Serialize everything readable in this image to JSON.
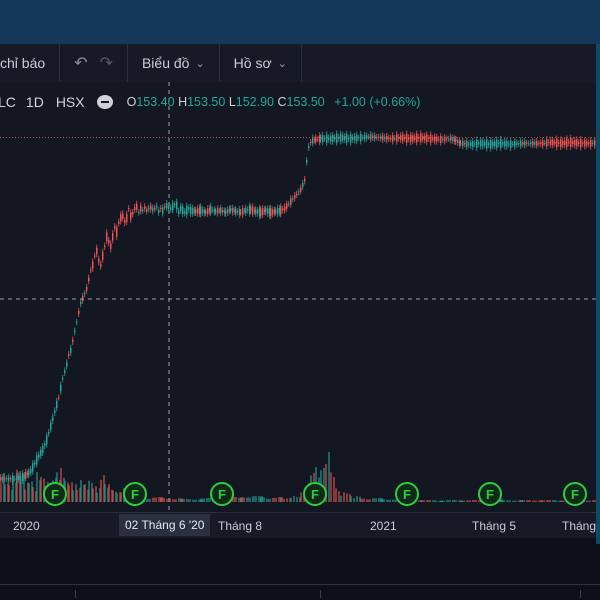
{
  "toolbar": {
    "indicators_label": "chỉ báo",
    "undo_icon": "undo-icon",
    "redo_icon": "redo-icon",
    "chart_menu_label": "Biểu đồ",
    "profile_menu_label": "Hồ sơ"
  },
  "legend": {
    "symbol": "LC",
    "timeframe": "1D",
    "exchange": "HSX",
    "open_label": "O",
    "open": "153.40",
    "high_label": "H",
    "high": "153.50",
    "low_label": "L",
    "low": "152.90",
    "close_label": "C",
    "close": "153.50",
    "change": "+1.00 (+0.66%)"
  },
  "time_axis": {
    "labels": [
      "2020",
      "Tháng 8",
      "2021",
      "Tháng 5",
      "Tháng"
    ],
    "crosshair_label": "02 Tháng 6 '20"
  },
  "events": {
    "markers": [
      "F",
      "F",
      "F",
      "F",
      "F",
      "F",
      "F"
    ]
  },
  "colors": {
    "up": "#26a69a",
    "down": "#ef5350",
    "background": "#131722",
    "event_green": "#2ecc40"
  },
  "chart_data": {
    "type": "candlestick",
    "last": {
      "open": 153.4,
      "high": 153.5,
      "low": 152.9,
      "close": 153.5
    },
    "series": [
      {
        "name": "close_path",
        "x": [
          0,
          6,
          12,
          18,
          22,
          25,
          28,
          30,
          34,
          38,
          42,
          46,
          50,
          54,
          58,
          62,
          66,
          68,
          70,
          72,
          74,
          76,
          78,
          80,
          82,
          84,
          86,
          88,
          90,
          92,
          94,
          96,
          98,
          100,
          102,
          104,
          106,
          108,
          110,
          112,
          114,
          116,
          118,
          120,
          122,
          124,
          126,
          128,
          130,
          132,
          134,
          136,
          138,
          140,
          142,
          144,
          146,
          148,
          150,
          152,
          154,
          156,
          158,
          160,
          162,
          164,
          166,
          168,
          170,
          172,
          174,
          176,
          178,
          180,
          182,
          184,
          186,
          188,
          190,
          195,
          200,
          205,
          210,
          215,
          220,
          225,
          230,
          235,
          240,
          245,
          250,
          255,
          260,
          265,
          270,
          275,
          280,
          284,
          288,
          292,
          296,
          300,
          304,
          306,
          308,
          310,
          312,
          315,
          320,
          330,
          340,
          350,
          360,
          370,
          380,
          390,
          400,
          410,
          420,
          430,
          440,
          450,
          455,
          460,
          470,
          480,
          490,
          500,
          510,
          520,
          530,
          540,
          550,
          560,
          570,
          580,
          590,
          600
        ],
        "y": [
          14,
          14,
          14,
          15,
          16,
          18,
          20,
          22,
          30,
          38,
          45,
          55,
          70,
          85,
          100,
          120,
          135,
          145,
          150,
          160,
          170,
          180,
          190,
          200,
          205,
          210,
          215,
          225,
          235,
          240,
          250,
          255,
          245,
          240,
          250,
          260,
          270,
          265,
          260,
          270,
          280,
          275,
          285,
          290,
          292,
          286,
          290,
          300,
          292,
          295,
          300,
          302,
          296,
          300,
          298,
          301,
          298,
          300,
          301,
          299,
          300,
          302,
          297,
          300,
          298,
          302,
          303,
          301,
          300,
          302,
          304,
          303,
          296,
          300,
          298,
          296,
          298,
          300,
          298,
          297,
          298,
          296,
          299,
          297,
          298,
          296,
          299,
          297,
          296,
          298,
          299,
          297,
          296,
          298,
          296,
          297,
          298,
          300,
          305,
          310,
          315,
          320,
          330,
          350,
          365,
          370,
          372,
          373,
          374,
          374,
          375,
          374,
          375,
          376,
          375,
          374,
          375,
          374,
          375,
          374,
          373,
          374,
          372,
          369,
          368,
          369,
          368,
          369,
          368,
          369,
          369,
          369,
          370,
          369,
          370,
          369,
          369,
          370
        ]
      },
      {
        "name": "volume",
        "x": [
          0,
          4,
          8,
          12,
          16,
          20,
          24,
          28,
          32,
          36,
          40,
          44,
          48,
          52,
          56,
          60,
          64,
          68,
          72,
          76,
          80,
          84,
          88,
          92,
          96,
          100,
          104,
          108,
          112,
          116,
          120,
          124,
          128,
          140,
          160,
          180,
          200,
          220,
          240,
          260,
          280,
          290,
          300,
          305,
          310,
          315,
          320,
          325,
          330,
          335,
          340,
          350,
          360,
          380,
          400,
          420,
          440,
          460,
          480,
          500,
          520,
          540,
          560,
          580,
          600
        ],
        "y": [
          30,
          22,
          18,
          26,
          34,
          28,
          20,
          24,
          16,
          30,
          26,
          20,
          15,
          28,
          32,
          34,
          22,
          20,
          18,
          16,
          24,
          18,
          22,
          16,
          14,
          30,
          20,
          18,
          12,
          10,
          14,
          8,
          6,
          5,
          4,
          3,
          4,
          5,
          6,
          5,
          4,
          6,
          10,
          20,
          30,
          35,
          40,
          50,
          30,
          15,
          10,
          6,
          4,
          3,
          2,
          2,
          2,
          2,
          3,
          2,
          2,
          2,
          2,
          2,
          2
        ]
      }
    ],
    "xlabel": "",
    "ylabel": "",
    "grid": false,
    "price_line": true,
    "crosshair": true,
    "x_ticks": [
      "2020",
      "Tháng 8",
      "2021",
      "Tháng 5",
      "Tháng"
    ]
  }
}
